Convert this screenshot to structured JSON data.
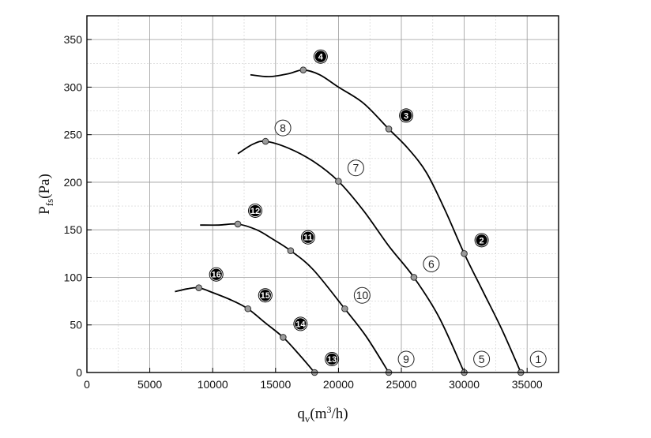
{
  "chart_data": {
    "type": "line",
    "title": "",
    "xlabel": {
      "main": "q",
      "sub": "v",
      "paren_open": "(m",
      "sup": "3",
      "paren_close": "/h)"
    },
    "ylabel": {
      "main": "P",
      "sub": "fs",
      "rest": "(Pa)"
    },
    "xlim": [
      0,
      37500
    ],
    "ylim": [
      0,
      375
    ],
    "x_ticks": [
      0,
      5000,
      10000,
      15000,
      20000,
      25000,
      30000,
      35000
    ],
    "x_tick_labels": [
      "0",
      "5000",
      "10000",
      "15000",
      "20000",
      "25000",
      "30000",
      "35000"
    ],
    "y_ticks": [
      0,
      50,
      100,
      150,
      200,
      250,
      300,
      350
    ],
    "y_tick_labels": [
      "0",
      "50",
      "100",
      "150",
      "200",
      "250",
      "300",
      "350"
    ],
    "grid": true,
    "series": [
      {
        "curve": [
          [
            13000,
            313
          ],
          [
            14500,
            311
          ],
          [
            16000,
            314
          ],
          [
            17200,
            318
          ],
          [
            18500,
            313
          ],
          [
            20000,
            300
          ],
          [
            22000,
            283
          ],
          [
            24000,
            256
          ],
          [
            25500,
            236
          ],
          [
            27000,
            210
          ],
          [
            28500,
            170
          ],
          [
            30000,
            125
          ],
          [
            31500,
            85
          ],
          [
            33000,
            45
          ],
          [
            34500,
            0
          ]
        ],
        "points": [
          {
            "x": 34500,
            "y": 0,
            "label": "1",
            "style": "open"
          },
          {
            "x": 30000,
            "y": 125,
            "label": "2",
            "style": "filled"
          },
          {
            "x": 24000,
            "y": 256,
            "label": "3",
            "style": "filled"
          },
          {
            "x": 17200,
            "y": 318,
            "label": "4",
            "style": "filled"
          }
        ]
      },
      {
        "curve": [
          [
            12000,
            230
          ],
          [
            13200,
            240
          ],
          [
            14200,
            243
          ],
          [
            16000,
            236
          ],
          [
            18000,
            222
          ],
          [
            20000,
            201
          ],
          [
            22000,
            170
          ],
          [
            24000,
            133
          ],
          [
            26000,
            100
          ],
          [
            28000,
            58
          ],
          [
            30000,
            0
          ]
        ],
        "points": [
          {
            "x": 30000,
            "y": 0,
            "label": "5",
            "style": "open"
          },
          {
            "x": 26000,
            "y": 100,
            "label": "6",
            "style": "open"
          },
          {
            "x": 20000,
            "y": 201,
            "label": "7",
            "style": "open"
          },
          {
            "x": 14200,
            "y": 243,
            "label": "8",
            "style": "open"
          }
        ]
      },
      {
        "curve": [
          [
            9000,
            155
          ],
          [
            10500,
            155
          ],
          [
            12000,
            156
          ],
          [
            13500,
            150
          ],
          [
            14800,
            140
          ],
          [
            16200,
            128
          ],
          [
            18000,
            108
          ],
          [
            20500,
            67
          ],
          [
            22200,
            38
          ],
          [
            24000,
            0
          ]
        ],
        "points": [
          {
            "x": 24000,
            "y": 0,
            "label": "9",
            "style": "open"
          },
          {
            "x": 20500,
            "y": 67,
            "label": "10",
            "style": "open"
          },
          {
            "x": 16200,
            "y": 128,
            "label": "11",
            "style": "filled"
          },
          {
            "x": 12000,
            "y": 156,
            "label": "12",
            "style": "filled"
          }
        ]
      },
      {
        "curve": [
          [
            7000,
            85
          ],
          [
            8000,
            88
          ],
          [
            8900,
            89
          ],
          [
            10000,
            84
          ],
          [
            11500,
            76
          ],
          [
            12800,
            67
          ],
          [
            14200,
            52
          ],
          [
            15600,
            37
          ],
          [
            16800,
            20
          ],
          [
            18100,
            0
          ]
        ],
        "points": [
          {
            "x": 18100,
            "y": 0,
            "label": "13",
            "style": "filled"
          },
          {
            "x": 15600,
            "y": 37,
            "label": "14",
            "style": "filled"
          },
          {
            "x": 12800,
            "y": 67,
            "label": "15",
            "style": "filled"
          },
          {
            "x": 8900,
            "y": 89,
            "label": "16",
            "style": "filled"
          }
        ]
      }
    ]
  },
  "colors": {
    "grid_major": "#9a9a9a",
    "grid_minor": "#cfcfcf",
    "curve": "#000000",
    "point_fill": "#9b9b9b",
    "marker_filled": "#000000"
  }
}
